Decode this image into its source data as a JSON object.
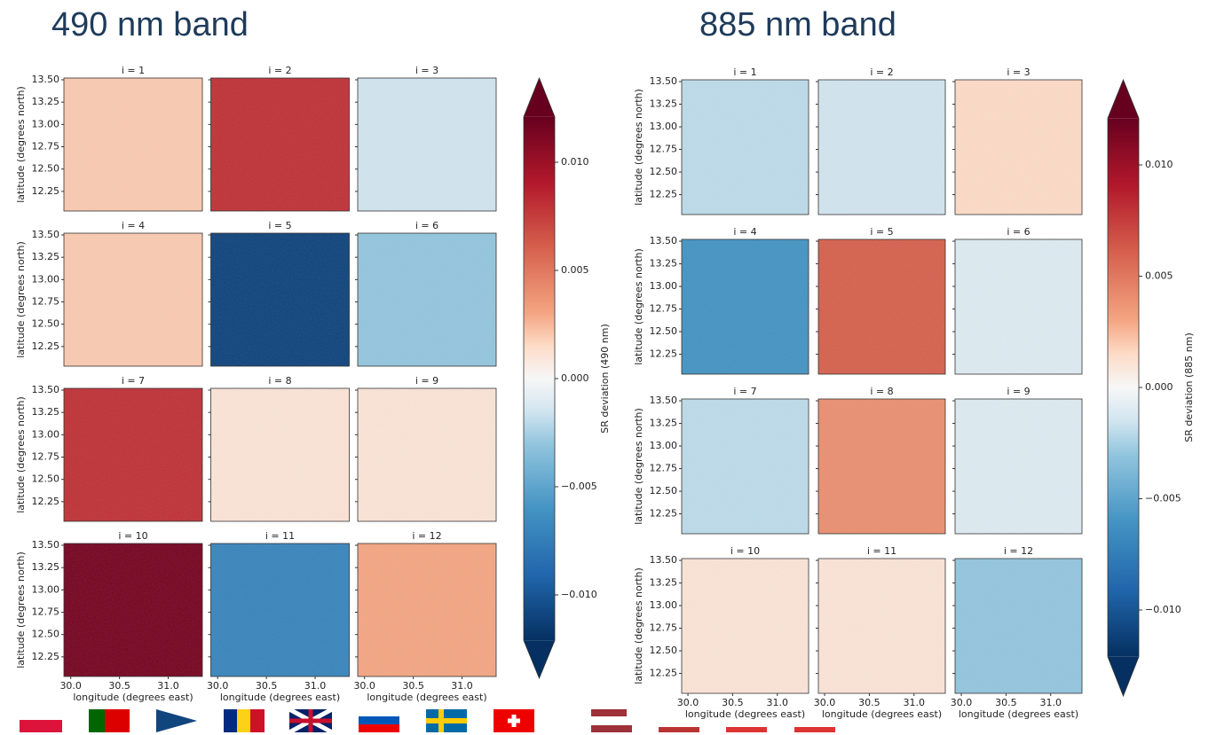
{
  "chart_data": [
    {
      "type": "heatmap",
      "title": "490 nm band",
      "colorbar_label": "SR deviation (490 nm)",
      "x_label": "longitude (degrees east)",
      "y_label": "latitude (degrees north)",
      "colormap": "RdBu_r",
      "clim": [
        -0.0121,
        0.0121
      ],
      "cticks": [
        {
          "value": 0.01,
          "label": "0.010"
        },
        {
          "value": 0.005,
          "label": "0.005"
        },
        {
          "value": 0,
          "label": "0.000"
        },
        {
          "value": -0.005,
          "label": "−0.005"
        },
        {
          "value": -0.01,
          "label": "−0.010"
        }
      ],
      "xlim": [
        29.93,
        31.35
      ],
      "ylim": [
        12.03,
        13.52
      ],
      "xticks": [
        {
          "value": 30,
          "label": "30.0"
        },
        {
          "value": 30.5,
          "label": "30.5"
        },
        {
          "value": 31,
          "label": "31.0"
        }
      ],
      "yticks": [
        {
          "value": 12.25,
          "label": "12.25"
        },
        {
          "value": 12.5,
          "label": "12.50"
        },
        {
          "value": 12.75,
          "label": "12.75"
        },
        {
          "value": 13,
          "label": "13.00"
        },
        {
          "value": 13.25,
          "label": "13.25"
        },
        {
          "value": 13.5,
          "label": "13.50"
        }
      ],
      "panels": [
        {
          "title": "i = 1",
          "value": 0.002
        },
        {
          "title": "i = 2",
          "value": 0.008
        },
        {
          "title": "i = 3",
          "value": -0.0015
        },
        {
          "title": "i = 4",
          "value": 0.002
        },
        {
          "title": "i = 5",
          "value": -0.011
        },
        {
          "title": "i = 6",
          "value": -0.003
        },
        {
          "title": "i = 7",
          "value": 0.008
        },
        {
          "title": "i = 8",
          "value": 0.001
        },
        {
          "title": "i = 9",
          "value": 0.001
        },
        {
          "title": "i = 10",
          "value": 0.0115
        },
        {
          "title": "i = 11",
          "value": -0.007
        },
        {
          "title": "i = 12",
          "value": 0.003
        }
      ]
    },
    {
      "type": "heatmap",
      "title": "885 nm band",
      "colorbar_label": "SR deviation (885 nm)",
      "x_label": "longitude (degrees east)",
      "y_label": "latitude (degrees north)",
      "colormap": "RdBu_r",
      "clim": [
        -0.0121,
        0.0121
      ],
      "cticks": [
        {
          "value": 0.01,
          "label": "0.010"
        },
        {
          "value": 0.005,
          "label": "0.005"
        },
        {
          "value": 0,
          "label": "0.000"
        },
        {
          "value": -0.005,
          "label": "−0.005"
        },
        {
          "value": -0.01,
          "label": "−0.010"
        }
      ],
      "xlim": [
        29.93,
        31.35
      ],
      "ylim": [
        12.03,
        13.52
      ],
      "xticks": [
        {
          "value": 30,
          "label": "30.0"
        },
        {
          "value": 30.5,
          "label": "30.5"
        },
        {
          "value": 31,
          "label": "31.0"
        }
      ],
      "yticks": [
        {
          "value": 12.25,
          "label": "12.25"
        },
        {
          "value": 12.5,
          "label": "12.50"
        },
        {
          "value": 12.75,
          "label": "12.75"
        },
        {
          "value": 13,
          "label": "13.00"
        },
        {
          "value": 13.25,
          "label": "13.25"
        },
        {
          "value": 13.5,
          "label": "13.50"
        }
      ],
      "panels": [
        {
          "title": "i = 1",
          "value": -0.002
        },
        {
          "title": "i = 2",
          "value": -0.0015
        },
        {
          "title": "i = 3",
          "value": 0.0015
        },
        {
          "title": "i = 4",
          "value": -0.006
        },
        {
          "title": "i = 5",
          "value": 0.006
        },
        {
          "title": "i = 6",
          "value": -0.001
        },
        {
          "title": "i = 7",
          "value": -0.002
        },
        {
          "title": "i = 8",
          "value": 0.004
        },
        {
          "title": "i = 9",
          "value": -0.001
        },
        {
          "title": "i = 10",
          "value": 0.001
        },
        {
          "title": "i = 11",
          "value": 0.001
        },
        {
          "title": "i = 12",
          "value": -0.003
        }
      ]
    }
  ]
}
